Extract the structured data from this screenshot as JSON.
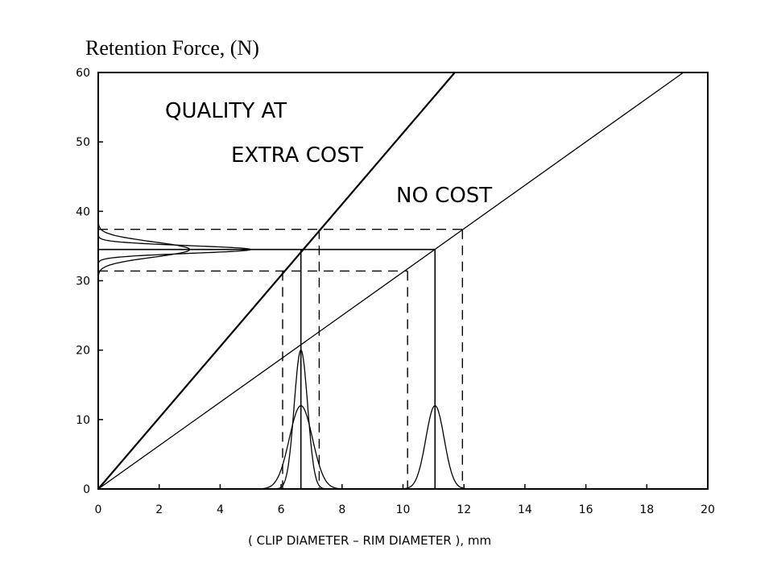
{
  "chart_data": {
    "type": "line",
    "title": "Retention Force, (N)",
    "xlabel": "( CLIP DIAMETER – RIM DIAMETER ), mm",
    "ylabel": "",
    "xlim": [
      0,
      20
    ],
    "ylim": [
      0,
      60
    ],
    "x_ticks": [
      0,
      2,
      4,
      6,
      8,
      10,
      12,
      14,
      16,
      18,
      20
    ],
    "y_ticks": [
      0,
      10,
      20,
      30,
      40,
      50,
      60
    ],
    "grid": false,
    "annotations": [
      "QUALITY AT",
      "EXTRA COST",
      "NO COST"
    ],
    "series": [
      {
        "style": "solid",
        "x": [
          0,
          11.7
        ],
        "y": [
          0,
          60
        ]
      },
      {
        "style": "solid",
        "x": [
          0,
          19.2
        ],
        "y": [
          0,
          60
        ]
      }
    ],
    "target_lines": {
      "solid_y": 34.5,
      "dashed_y": [
        31.4,
        37.4
      ],
      "steep_x": {
        "center": 6.65,
        "low": 6.05,
        "high": 7.25
      },
      "shallow_x": {
        "center": 11.05,
        "low": 10.15,
        "high": 11.95
      }
    },
    "distributions": {
      "y_axis": [
        {
          "center": 34.5,
          "sigma": 1.1,
          "peak_x": 3.0
        },
        {
          "center": 34.5,
          "sigma": 0.55,
          "peak_x": 5.0
        }
      ],
      "x_axis": [
        {
          "center": 6.65,
          "sigma": 0.22,
          "peak_y": 20
        },
        {
          "center": 6.65,
          "sigma": 0.38,
          "peak_y": 12
        },
        {
          "center": 11.05,
          "sigma": 0.3,
          "peak_y": 12
        }
      ]
    }
  }
}
